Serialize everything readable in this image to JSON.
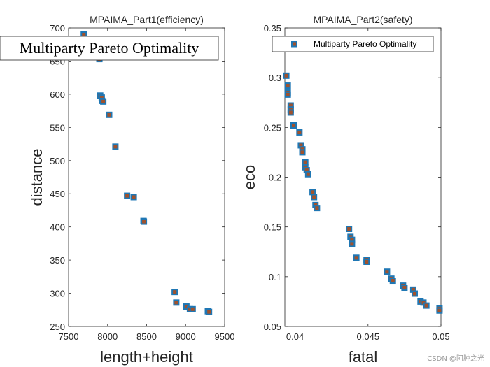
{
  "watermark": "CSDN @阿肿之光",
  "chart_data": [
    {
      "type": "scatter",
      "title": "MPAIMA_Part1(efficiency)",
      "xlabel": "length+height",
      "ylabel": "distance",
      "xlim": [
        7500,
        9500
      ],
      "ylim": [
        250,
        700
      ],
      "xticks": [
        "7500",
        "8000",
        "8500",
        "9000",
        "9500"
      ],
      "yticks": [
        "250",
        "300",
        "350",
        "400",
        "450",
        "500",
        "550",
        "600",
        "650",
        "700"
      ],
      "legend": {
        "label": "Multiparty Pareto Optimality",
        "position": "top-left",
        "font": "serif"
      },
      "marker": {
        "shape": "square",
        "face": "#1f77b4",
        "inner": "#a0522d"
      },
      "points": [
        {
          "x": 7695,
          "y": 690
        },
        {
          "x": 7895,
          "y": 653
        },
        {
          "x": 7905,
          "y": 598
        },
        {
          "x": 7925,
          "y": 595
        },
        {
          "x": 7930,
          "y": 590
        },
        {
          "x": 7945,
          "y": 589
        },
        {
          "x": 8020,
          "y": 569
        },
        {
          "x": 8100,
          "y": 521
        },
        {
          "x": 8250,
          "y": 447
        },
        {
          "x": 8335,
          "y": 445
        },
        {
          "x": 8460,
          "y": 409
        },
        {
          "x": 8465,
          "y": 408
        },
        {
          "x": 8860,
          "y": 302
        },
        {
          "x": 8880,
          "y": 286
        },
        {
          "x": 9010,
          "y": 280
        },
        {
          "x": 9055,
          "y": 276
        },
        {
          "x": 9090,
          "y": 276
        },
        {
          "x": 9285,
          "y": 273
        },
        {
          "x": 9300,
          "y": 272
        }
      ]
    },
    {
      "type": "scatter",
      "title": "MPAIMA_Part2(safety)",
      "xlabel": "fatal",
      "ylabel": "eco",
      "xlim": [
        0.0393,
        0.05
      ],
      "ylim": [
        0.05,
        0.35
      ],
      "xticks": [
        "0.04",
        "0.045",
        "0.05"
      ],
      "xtick_values": [
        0.04,
        0.045,
        0.05
      ],
      "yticks": [
        "0.05",
        "0.1",
        "0.15",
        "0.2",
        "0.25",
        "0.3",
        "0.35"
      ],
      "legend": {
        "label": "Multiparty Pareto Optimality",
        "position": "top-right",
        "font": "sans"
      },
      "marker": {
        "shape": "square",
        "face": "#1f77b4",
        "inner": "#a0522d"
      },
      "points": [
        {
          "x": 0.0394,
          "y": 0.302
        },
        {
          "x": 0.0395,
          "y": 0.292
        },
        {
          "x": 0.0395,
          "y": 0.285
        },
        {
          "x": 0.0395,
          "y": 0.283
        },
        {
          "x": 0.0397,
          "y": 0.272
        },
        {
          "x": 0.0397,
          "y": 0.268
        },
        {
          "x": 0.0397,
          "y": 0.265
        },
        {
          "x": 0.0399,
          "y": 0.252
        },
        {
          "x": 0.0403,
          "y": 0.245
        },
        {
          "x": 0.0404,
          "y": 0.232
        },
        {
          "x": 0.0405,
          "y": 0.228
        },
        {
          "x": 0.0405,
          "y": 0.225
        },
        {
          "x": 0.0407,
          "y": 0.215
        },
        {
          "x": 0.0407,
          "y": 0.21
        },
        {
          "x": 0.0408,
          "y": 0.207
        },
        {
          "x": 0.0409,
          "y": 0.203
        },
        {
          "x": 0.0412,
          "y": 0.185
        },
        {
          "x": 0.0413,
          "y": 0.18
        },
        {
          "x": 0.0414,
          "y": 0.172
        },
        {
          "x": 0.0415,
          "y": 0.169
        },
        {
          "x": 0.0437,
          "y": 0.148
        },
        {
          "x": 0.0438,
          "y": 0.14
        },
        {
          "x": 0.0439,
          "y": 0.137
        },
        {
          "x": 0.0439,
          "y": 0.133
        },
        {
          "x": 0.0442,
          "y": 0.119
        },
        {
          "x": 0.0449,
          "y": 0.117
        },
        {
          "x": 0.0449,
          "y": 0.115
        },
        {
          "x": 0.0463,
          "y": 0.105
        },
        {
          "x": 0.0466,
          "y": 0.098
        },
        {
          "x": 0.0467,
          "y": 0.096
        },
        {
          "x": 0.0474,
          "y": 0.091
        },
        {
          "x": 0.0475,
          "y": 0.089
        },
        {
          "x": 0.0481,
          "y": 0.087
        },
        {
          "x": 0.0482,
          "y": 0.083
        },
        {
          "x": 0.0486,
          "y": 0.075
        },
        {
          "x": 0.0488,
          "y": 0.074
        },
        {
          "x": 0.049,
          "y": 0.071
        },
        {
          "x": 0.0499,
          "y": 0.068
        },
        {
          "x": 0.0499,
          "y": 0.066
        }
      ]
    }
  ]
}
